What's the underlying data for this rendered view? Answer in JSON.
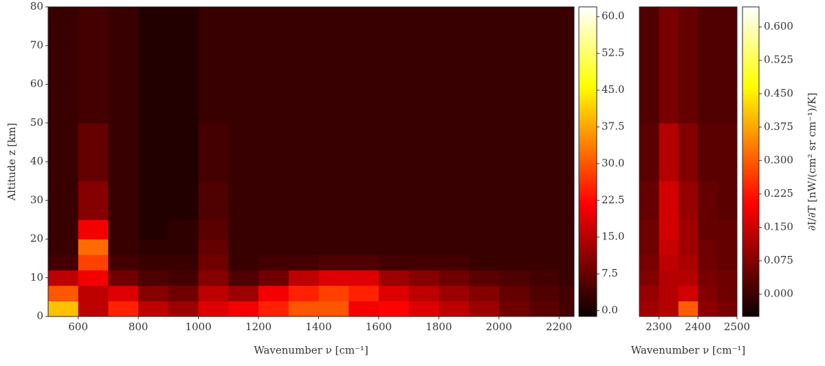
{
  "chart_data": [
    {
      "type": "heatmap",
      "xlabel": "Wavenumber ν [cm⁻¹]",
      "ylabel": "Altitude z [km]",
      "x_edges": [
        500,
        600,
        700,
        800,
        900,
        1000,
        1100,
        1200,
        1300,
        1400,
        1500,
        1600,
        1700,
        1800,
        1900,
        2000,
        2100,
        2200,
        2250
      ],
      "y_edges": [
        0,
        4,
        8,
        12,
        16,
        20,
        25,
        35,
        50,
        80
      ],
      "values": [
        [
          40,
          15,
          25,
          15,
          12,
          18,
          20,
          25,
          30,
          30,
          20,
          22,
          18,
          15,
          12,
          8,
          6,
          4
        ],
        [
          30,
          15,
          18,
          10,
          8,
          15,
          12,
          20,
          25,
          28,
          25,
          18,
          15,
          12,
          10,
          7,
          5,
          4
        ],
        [
          15,
          20,
          8,
          5,
          4,
          10,
          5,
          8,
          15,
          18,
          18,
          12,
          10,
          8,
          6,
          5,
          4,
          3
        ],
        [
          4,
          28,
          4,
          3,
          3,
          8,
          3,
          4,
          4,
          5,
          5,
          4,
          4,
          4,
          3,
          3,
          3,
          3
        ],
        [
          3,
          32,
          3,
          2,
          2,
          7,
          3,
          3,
          3,
          3,
          3,
          3,
          3,
          3,
          3,
          3,
          3,
          3
        ],
        [
          3,
          20,
          3,
          1,
          2,
          6,
          3,
          3,
          3,
          3,
          3,
          3,
          3,
          3,
          3,
          3,
          3,
          3
        ],
        [
          3,
          10,
          3,
          1,
          1,
          5,
          3,
          3,
          3,
          3,
          3,
          3,
          3,
          3,
          3,
          3,
          3,
          3
        ],
        [
          3,
          7,
          3,
          1,
          1,
          4,
          3,
          3,
          3,
          3,
          3,
          3,
          3,
          3,
          3,
          3,
          3,
          3
        ],
        [
          3,
          4,
          3,
          1,
          1,
          3,
          3,
          3,
          3,
          3,
          3,
          3,
          3,
          3,
          3,
          3,
          3,
          3
        ]
      ],
      "xlim": [
        500,
        2250
      ],
      "xticks": [
        600,
        800,
        1000,
        1200,
        1400,
        1600,
        1800,
        2000,
        2200
      ],
      "ylim": [
        0,
        80
      ],
      "yticks": [
        0,
        10,
        20,
        30,
        40,
        50,
        60,
        70,
        80
      ],
      "colormap": "hot",
      "clim": [
        -1.2,
        62
      ],
      "cticks": [
        {
          "value": 0,
          "label": "0.0"
        },
        7.5,
        {
          "value": 15,
          "label": "15.0"
        },
        22.5,
        {
          "value": 30,
          "label": "30.0"
        },
        37.5,
        {
          "value": 45,
          "label": "45.0"
        },
        52.5,
        {
          "value": 60,
          "label": "60.0"
        }
      ]
    },
    {
      "type": "heatmap",
      "xlabel": "Wavenumber ν [cm⁻¹]",
      "clabel": "∂I/∂T [nW/(cm² sr cm⁻¹)/K]",
      "x_edges": [
        2250,
        2300,
        2350,
        2400,
        2450,
        2500
      ],
      "y_edges": [
        0,
        4,
        8,
        12,
        16,
        20,
        25,
        35,
        50,
        80
      ],
      "values": [
        [
          0.1,
          0.12,
          0.3,
          0.08,
          0.06
        ],
        [
          0.09,
          0.12,
          0.15,
          0.07,
          0.05
        ],
        [
          0.07,
          0.12,
          0.12,
          0.06,
          0.05
        ],
        [
          0.06,
          0.13,
          0.11,
          0.05,
          0.04
        ],
        [
          0.05,
          0.14,
          0.1,
          0.05,
          0.04
        ],
        [
          0.05,
          0.15,
          0.1,
          0.04,
          0.04
        ],
        [
          0.04,
          0.15,
          0.09,
          0.04,
          0.03
        ],
        [
          0.03,
          0.12,
          0.07,
          0.03,
          0.03
        ],
        [
          0.02,
          0.06,
          0.04,
          0.02,
          0.02
        ]
      ],
      "xlim": [
        2250,
        2500
      ],
      "xticks": [
        2300,
        2400,
        2500
      ],
      "ylim": [
        0,
        80
      ],
      "colormap": "hot",
      "clim": [
        -0.05,
        0.645
      ],
      "cticks": [
        {
          "value": 0,
          "label": "0.000"
        },
        0.075,
        {
          "value": 0.15,
          "label": "0.150"
        },
        0.225,
        {
          "value": 0.3,
          "label": "0.300"
        },
        0.375,
        {
          "value": 0.45,
          "label": "0.450"
        },
        0.525,
        {
          "value": 0.6,
          "label": "0.600"
        }
      ]
    }
  ]
}
